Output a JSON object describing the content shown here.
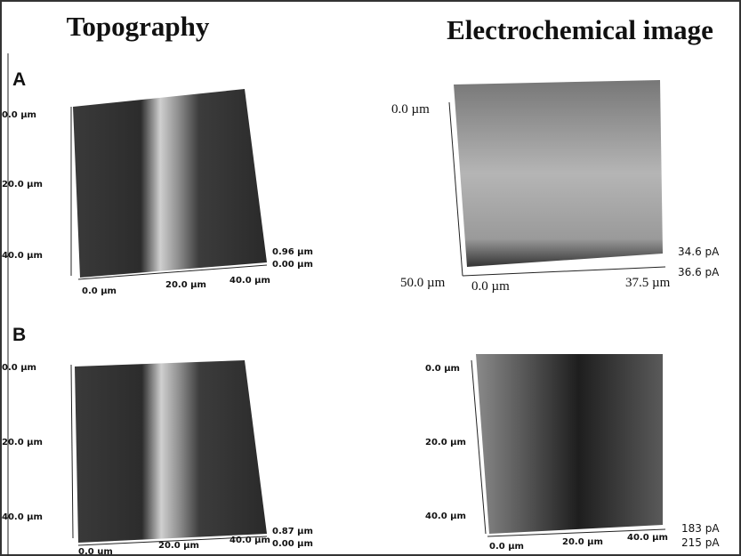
{
  "headers": [
    "Topography",
    "Electrochemical image"
  ],
  "rows": [
    {
      "label": "A",
      "topography": {
        "y_labels": [
          "0.0 µm",
          "20.0 µm",
          "40.0 µm"
        ],
        "x_labels": [
          "0.0 µm",
          "20.0 µm",
          "40.0 µm"
        ],
        "z_labels": [
          "0.96 µm",
          "0.00 µm"
        ]
      },
      "electrochemical": {
        "y_labels": [
          "0.0 µm",
          "50.0 µm"
        ],
        "x_labels": [
          "0.0 µm",
          "37.5 µm"
        ],
        "z_labels": [
          "34.6 pA",
          "36.6 pA"
        ]
      }
    },
    {
      "label": "B",
      "topography": {
        "y_labels": [
          "0.0 µm",
          "20.0 µm",
          "40.0 µm"
        ],
        "x_labels": [
          "0.0 um",
          "20.0 µm",
          "40.0 µm"
        ],
        "z_labels": [
          "0.87 µm",
          "0.00 µm"
        ]
      },
      "electrochemical": {
        "y_labels": [
          "0.0 µm",
          "20.0 µm",
          "40.0 µm"
        ],
        "x_labels": [
          "0.0 µm",
          "20.0 µm",
          "40.0 µm"
        ],
        "z_labels": [
          "183 pA",
          "215 pA"
        ]
      }
    }
  ]
}
